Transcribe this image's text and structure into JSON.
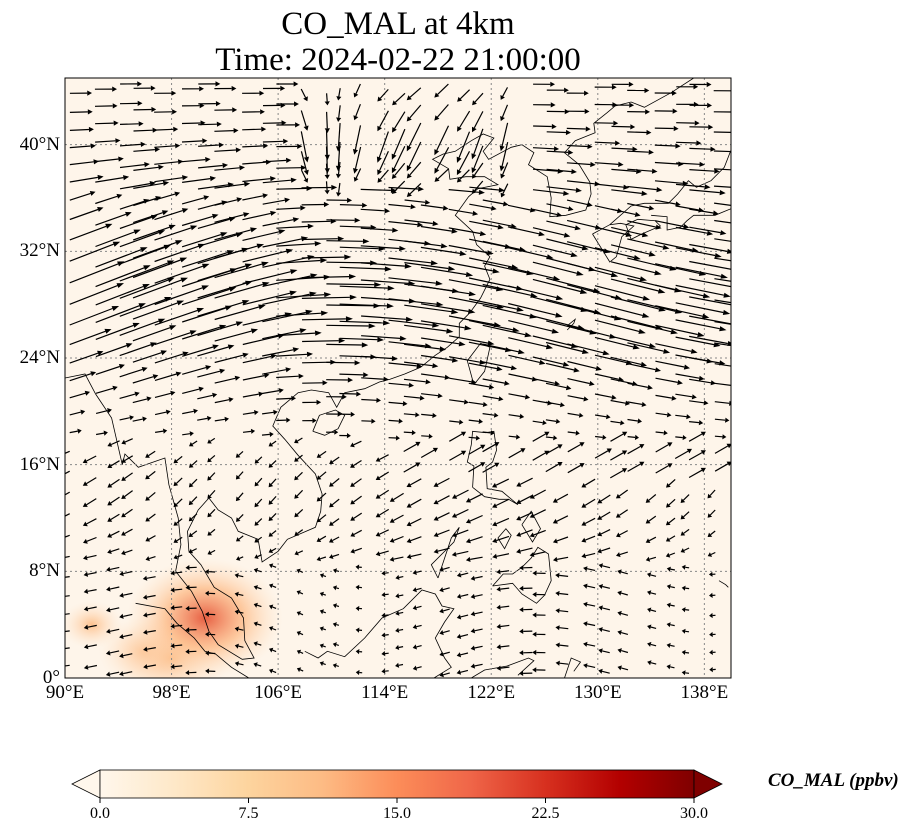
{
  "title": {
    "line1": "CO_MAL at 4km",
    "line2": "Time: 2024-02-22 21:00:00"
  },
  "map": {
    "extent": {
      "lon": [
        90,
        140
      ],
      "lat": [
        0,
        45
      ]
    },
    "lat_ticks": [
      {
        "value": 0,
        "label": "0°"
      },
      {
        "value": 8,
        "label": "8°N"
      },
      {
        "value": 16,
        "label": "16°N"
      },
      {
        "value": 24,
        "label": "24°N"
      },
      {
        "value": 32,
        "label": "32°N"
      },
      {
        "value": 40,
        "label": "40°N"
      }
    ],
    "lon_ticks": [
      {
        "value": 90,
        "label": "90°E"
      },
      {
        "value": 98,
        "label": "98°E"
      },
      {
        "value": 106,
        "label": "106°E"
      },
      {
        "value": 114,
        "label": "114°E"
      },
      {
        "value": 122,
        "label": "122°E"
      },
      {
        "value": 130,
        "label": "130°E"
      },
      {
        "value": 138,
        "label": "138°E"
      }
    ],
    "gridlines": true,
    "field_background": "#fef5ea",
    "hotspots": [
      {
        "lon": 96,
        "lat": 2,
        "value": 6
      },
      {
        "lon": 98,
        "lat": 1.5,
        "value": 8
      },
      {
        "lon": 100.5,
        "lat": 4.5,
        "value": 12
      },
      {
        "lon": 92,
        "lat": 4,
        "value": 3
      }
    ]
  },
  "colorbar": {
    "label": "CO_MAL (ppbv)",
    "min": 0,
    "max": 30,
    "ticks": [
      "0.0",
      "7.5",
      "15.0",
      "22.5",
      "30.0"
    ],
    "colormap": "OrRd",
    "extend": "both"
  },
  "colors": {
    "coast": "#000000",
    "grid": "#888888",
    "arrow": "#000000"
  }
}
